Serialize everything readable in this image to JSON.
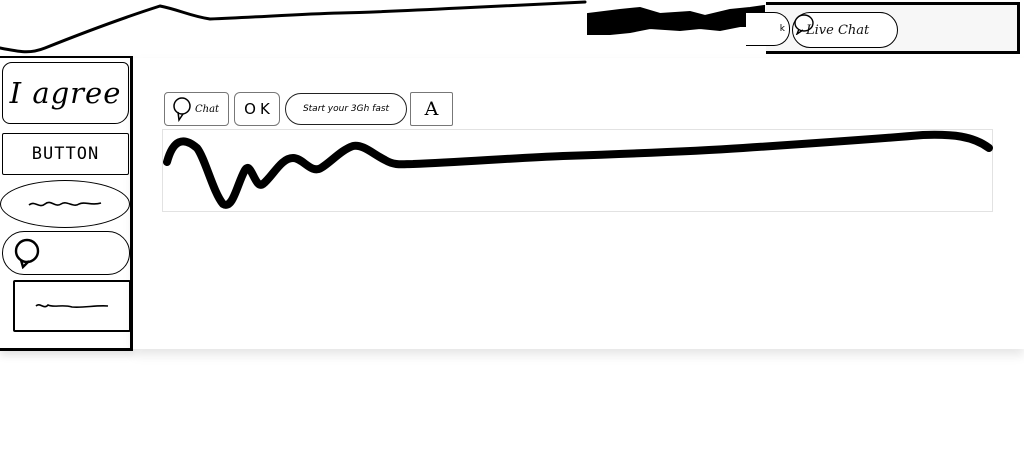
{
  "header": {
    "live_chat_label": "Live Chat",
    "clipped_button_label": "k"
  },
  "sidebar": {
    "items": [
      {
        "label": "I agree"
      },
      {
        "label": "BUTTON"
      },
      {
        "label": ""
      },
      {
        "label": ""
      },
      {
        "label": ""
      }
    ]
  },
  "toolbar": {
    "chat_label": "Chat",
    "ok_label": "OK",
    "start_label": "Start your 3Gh fast",
    "a_label": "A"
  },
  "icons": {
    "chat": "speech-bubble-icon",
    "chat_round": "speech-bubble-icon"
  },
  "colors": {
    "ink": "#000000",
    "background": "#ffffff",
    "panel_header": "#f7f7f7"
  }
}
